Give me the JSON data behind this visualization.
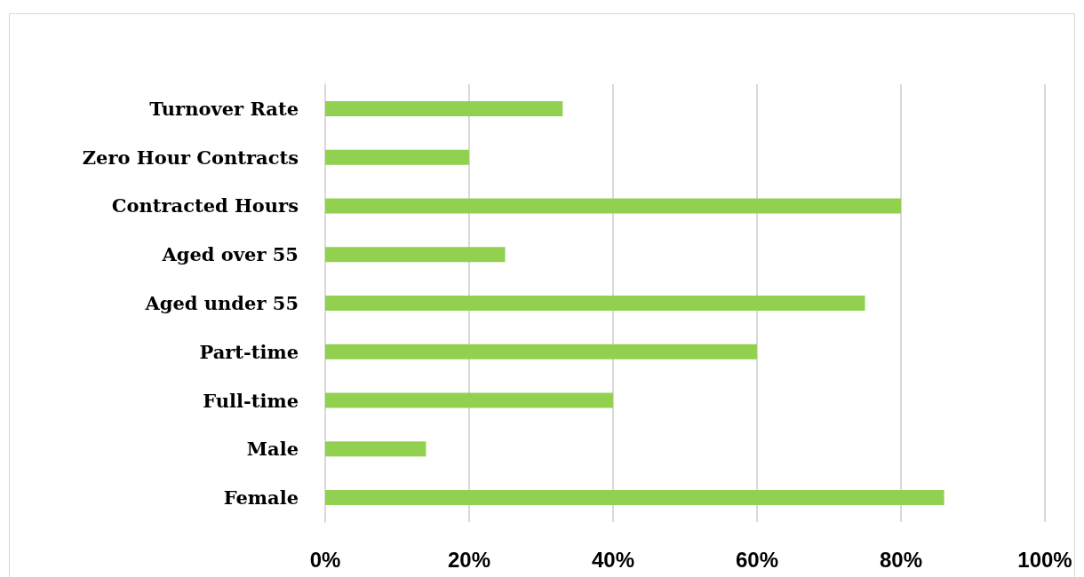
{
  "chart_data": {
    "type": "bar",
    "orientation": "horizontal",
    "categories": [
      "Turnover Rate",
      "Zero Hour Contracts",
      "Contracted Hours",
      "Aged over 55",
      "Aged under 55",
      "Part-time",
      "Full-time",
      "Male",
      "Female"
    ],
    "values": [
      33,
      20,
      80,
      25,
      75,
      60,
      40,
      14,
      86
    ],
    "color": "#92d050",
    "xlim": [
      0,
      100
    ],
    "xticks": [
      {
        "value": 0,
        "label": "0%"
      },
      {
        "value": 20,
        "label": "20%"
      },
      {
        "value": 40,
        "label": "40%"
      },
      {
        "value": 60,
        "label": "60%"
      },
      {
        "value": 80,
        "label": "80%"
      },
      {
        "value": 100,
        "label": "100%"
      }
    ],
    "grid": "x"
  }
}
